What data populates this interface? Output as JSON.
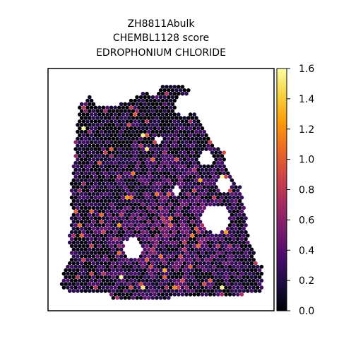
{
  "chart_data": {
    "type": "scatter",
    "title_lines": [
      "ZH8811Abulk",
      "CHEMBL1128 score",
      "EDROPHONIUM CHLORIDE"
    ],
    "xlabel": "",
    "ylabel": "",
    "axes_ticks_visible": false,
    "grid": false,
    "colormap": "inferno",
    "colorbar": {
      "vmin": 0.0,
      "vmax": 1.6,
      "ticks": [
        0.0,
        0.2,
        0.4,
        0.6,
        0.8,
        1.0,
        1.2,
        1.4,
        1.6
      ],
      "tick_labels": [
        "0.0",
        "0.2",
        "0.4",
        "0.6",
        "0.8",
        "1.0",
        "1.2",
        "1.4",
        "1.6"
      ],
      "position": "right"
    },
    "colormap_stops": [
      "#000004",
      "#1b0c41",
      "#4a0c6b",
      "#781c6d",
      "#a52c60",
      "#cf4446",
      "#ed6925",
      "#fb9b06",
      "#f7d13d",
      "#fcffa4"
    ],
    "point_description": "hexagonal grid of tissue spots, mostly dark purple values 0.1-0.6, scattered orange highlights up to ~1.2, rare pale-yellow near 1.6"
  }
}
